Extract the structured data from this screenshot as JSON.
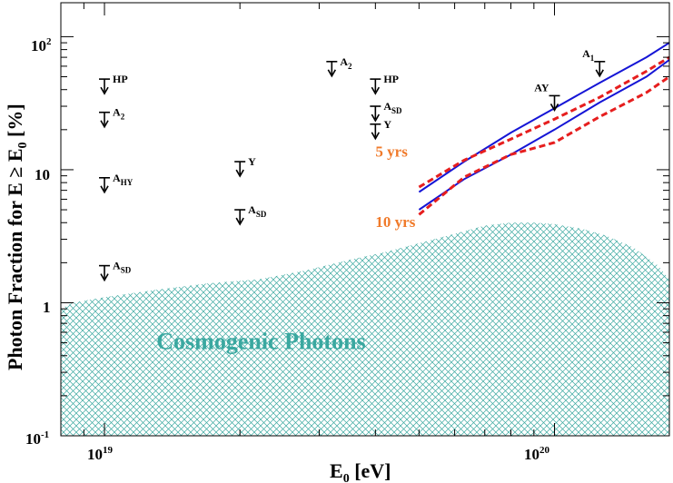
{
  "chart_data": {
    "type": "scatter",
    "xscale": "log",
    "yscale": "log",
    "xlim": [
      8e+18,
      1.8e+20
    ],
    "ylim": [
      0.1,
      180
    ],
    "x_tick_labels": [
      {
        "value": 1e+19,
        "base": "10",
        "exp": "19"
      },
      {
        "value": 1e+20,
        "base": "10",
        "exp": "20"
      }
    ],
    "y_tick_labels": [
      {
        "value": 100,
        "base": "10",
        "exp": "2"
      },
      {
        "value": 10,
        "text": "10"
      },
      {
        "value": 1,
        "text": "1"
      },
      {
        "value": 0.1,
        "base": "10",
        "exp": "-1"
      }
    ],
    "xlabel": {
      "main": "E",
      "sub": "0",
      "rest": " [eV]"
    },
    "ylabel": {
      "part1": "Photon Fraction for E ≥ E",
      "sub": "0",
      "part2": " [%]"
    },
    "upper_limits": [
      {
        "x": 1e+19,
        "y": 48,
        "label": "HP",
        "sub": ""
      },
      {
        "x": 1e+19,
        "y": 27,
        "label": "A",
        "sub": "2"
      },
      {
        "x": 1e+19,
        "y": 8.7,
        "label": "A",
        "sub": "HY"
      },
      {
        "x": 1e+19,
        "y": 1.9,
        "label": "A",
        "sub": "SD"
      },
      {
        "x": 2e+19,
        "y": 11.5,
        "label": "Y",
        "sub": ""
      },
      {
        "x": 2e+19,
        "y": 5.0,
        "label": "A",
        "sub": "SD"
      },
      {
        "x": 3.2e+19,
        "y": 65,
        "label": "A",
        "sub": "2"
      },
      {
        "x": 4e+19,
        "y": 48,
        "label": "HP",
        "sub": ""
      },
      {
        "x": 4e+19,
        "y": 30,
        "label": "A",
        "sub": "SD"
      },
      {
        "x": 4e+19,
        "y": 22,
        "label": "Y",
        "sub": ""
      },
      {
        "x": 1e+20,
        "y": 36,
        "label": "AY",
        "sub": ""
      },
      {
        "x": 1.26e+20,
        "y": 65,
        "label": "A",
        "sub": "1"
      }
    ],
    "series": [
      {
        "name": "5 yrs upper (solid)",
        "color": "#1515d6",
        "dash": false,
        "x": [
          5e+19,
          6.3e+19,
          8e+19,
          1e+20,
          1.26e+20,
          1.6e+20,
          1.8e+20
        ],
        "values": [
          6.8,
          11.5,
          19,
          29,
          45,
          70,
          90
        ]
      },
      {
        "name": "5 yrs lower (solid)",
        "color": "#1515d6",
        "dash": false,
        "x": [
          5e+19,
          6.3e+19,
          8e+19,
          1e+20,
          1.26e+20,
          1.6e+20,
          1.8e+20
        ],
        "values": [
          5.0,
          8.5,
          13,
          20,
          32,
          50,
          67
        ]
      },
      {
        "name": "10 yrs upper (dashed)",
        "color": "#e61e1e",
        "dash": true,
        "x": [
          5e+19,
          6.3e+19,
          8e+19,
          1e+20,
          1.26e+20,
          1.6e+20,
          1.8e+20
        ],
        "values": [
          7.4,
          11.8,
          17,
          24,
          35,
          55,
          70
        ]
      },
      {
        "name": "10 yrs lower (dashed)",
        "color": "#e61e1e",
        "dash": true,
        "x": [
          5e+19,
          6.3e+19,
          8e+19,
          1e+20,
          1.26e+20,
          1.6e+20,
          1.8e+20
        ],
        "values": [
          4.6,
          8.8,
          13,
          16,
          25,
          38,
          50
        ]
      }
    ],
    "band": {
      "name": "Cosmogenic Photons",
      "color": "#3aa8a0",
      "x": [
        8e+18,
        8.5e+18,
        1e+19,
        1.3e+19,
        1.7e+19,
        2.2e+19,
        2.8e+19,
        3.5e+19,
        4.2e+19,
        5e+19,
        6e+19,
        7e+19,
        8e+19,
        9e+19,
        1e+20,
        1.15e+20,
        1.3e+20,
        1.5e+20,
        1.7e+20,
        1.8e+20
      ],
      "upper": [
        0.9,
        1.0,
        1.1,
        1.25,
        1.4,
        1.5,
        1.75,
        2.1,
        2.4,
        2.8,
        3.3,
        3.8,
        4.0,
        4.0,
        3.9,
        3.6,
        3.2,
        2.6,
        1.9,
        1.5
      ],
      "lower": 0.1
    },
    "annotations": [
      {
        "text": "5 yrs",
        "color": "#f07a2a",
        "x": 4.6e+19,
        "y": 12.5
      },
      {
        "text": "10 yrs",
        "color": "#f07a2a",
        "x": 4.6e+19,
        "y": 3.7
      },
      {
        "text": "Cosmogenic Photons",
        "color": "#3aa8a0",
        "x": 1.5e+19,
        "y": 0.45
      }
    ]
  }
}
